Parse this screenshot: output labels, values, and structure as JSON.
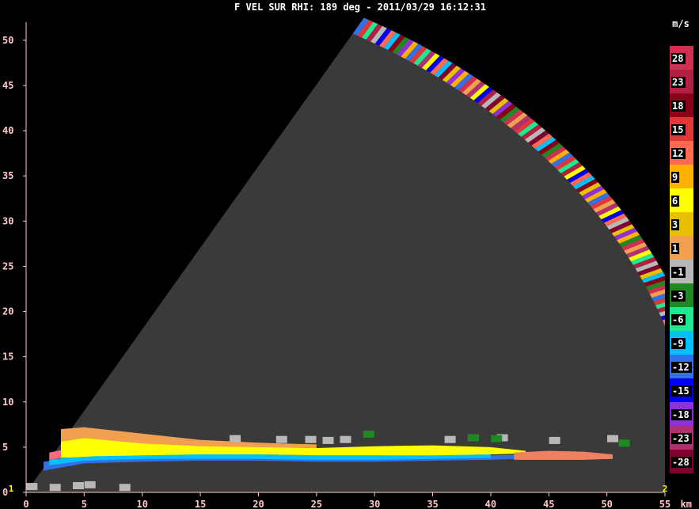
{
  "chart_data": {
    "type": "heatmap",
    "title": "F VEL SUR  RHI: 189 deg  -  2011/03/29 16:12:31",
    "xlabel": "km",
    "ylabel": "",
    "xlim": [
      0,
      55
    ],
    "ylim": [
      0,
      52
    ],
    "x_ticks": [
      0,
      5,
      10,
      15,
      20,
      25,
      30,
      35,
      40,
      45,
      50,
      55
    ],
    "y_ticks": [
      0,
      5,
      10,
      15,
      20,
      25,
      30,
      35,
      40,
      45,
      50
    ],
    "grid": false,
    "background_color": "#000000",
    "scan_area_color": "#3a3a3a",
    "scan_sector": {
      "max_elevation_deg": 61,
      "max_range_km": 60
    },
    "corner_labels": {
      "bottom_left": "1",
      "bottom_right": "2"
    },
    "colorbar": {
      "unit": "m/s",
      "placement": "right",
      "bins": [
        {
          "label": "28",
          "color": "#d03050"
        },
        {
          "label": "23",
          "color": "#b02040"
        },
        {
          "label": "18",
          "color": "#8a0018"
        },
        {
          "label": "15",
          "color": "#e03838"
        },
        {
          "label": "12",
          "color": "#ff6a50"
        },
        {
          "label": "9",
          "color": "#ffb000"
        },
        {
          "label": "6",
          "color": "#ffff00"
        },
        {
          "label": "3",
          "color": "#e8c000"
        },
        {
          "label": "1",
          "color": "#f0a050"
        },
        {
          "label": "-1",
          "color": "#b8b8b8"
        },
        {
          "label": "-3",
          "color": "#208820"
        },
        {
          "label": "-6",
          "color": "#20e890"
        },
        {
          "label": "-9",
          "color": "#00c0ff"
        },
        {
          "label": "-12",
          "color": "#3070e8"
        },
        {
          "label": "-15",
          "color": "#0000f0"
        },
        {
          "label": "-18",
          "color": "#9030d8"
        },
        {
          "label": "-23",
          "color": "#b03070"
        },
        {
          "label": "-28",
          "color": "#800030"
        }
      ]
    },
    "echo_layers": [
      {
        "name": "lower blue layer",
        "color": "#3070e8",
        "x": [
          1.5,
          5,
          10,
          15,
          20,
          25,
          30,
          35,
          40,
          44
        ],
        "bottom": [
          2.4,
          3.2,
          3.4,
          3.5,
          3.5,
          3.4,
          3.4,
          3.5,
          3.6,
          3.8
        ],
        "top": [
          3.4,
          3.9,
          4.0,
          4.0,
          4.1,
          4.0,
          4.0,
          4.0,
          4.1,
          4.2
        ]
      },
      {
        "name": "cyan layer",
        "color": "#00c0ff",
        "x": [
          2,
          5,
          10,
          15,
          20,
          25,
          30,
          35,
          40
        ],
        "bottom": [
          3.0,
          3.5,
          3.7,
          3.7,
          3.7,
          3.6,
          3.6,
          3.7,
          3.8
        ],
        "top": [
          3.6,
          4.0,
          4.2,
          4.2,
          4.2,
          4.1,
          4.1,
          4.2,
          4.2
        ]
      },
      {
        "name": "pink layer",
        "color": "#ff6a80",
        "x": [
          2,
          5,
          10,
          14,
          18,
          24
        ],
        "bottom": [
          3.6,
          4.2,
          4.6,
          4.7,
          4.7,
          4.6
        ],
        "top": [
          4.4,
          5.2,
          5.5,
          5.4,
          5.2,
          5.0
        ]
      },
      {
        "name": "yellow main layer",
        "color": "#ffff00",
        "x": [
          3,
          6,
          10,
          15,
          20,
          25,
          30,
          35,
          40,
          43
        ],
        "bottom": [
          3.8,
          4.0,
          4.1,
          4.2,
          4.2,
          4.1,
          4.1,
          4.1,
          4.2,
          4.3
        ],
        "top": [
          6.8,
          6.2,
          5.6,
          5.2,
          5.0,
          4.9,
          5.1,
          5.2,
          5.0,
          4.6
        ]
      },
      {
        "name": "orange upper layer",
        "color": "#f0a050",
        "x": [
          3,
          5,
          10,
          15,
          20,
          25
        ],
        "bottom": [
          5.6,
          6.0,
          5.4,
          5.1,
          5.0,
          4.9
        ],
        "top": [
          7.0,
          7.2,
          6.5,
          5.8,
          5.5,
          5.3
        ]
      },
      {
        "name": "orange trailing",
        "color": "#f08060",
        "x": [
          42,
          45,
          48,
          50.5
        ],
        "bottom": [
          3.6,
          3.6,
          3.6,
          3.7
        ],
        "top": [
          4.4,
          4.6,
          4.5,
          4.2
        ]
      }
    ],
    "echo_patches": [
      {
        "name": "grey cells",
        "color": "#b8b8b8",
        "x": [
          18,
          22,
          24.5,
          26,
          27.5,
          36.5,
          38.5,
          41,
          45.5,
          50.5
        ],
        "y": [
          5.9,
          5.8,
          5.8,
          5.7,
          5.8,
          5.8,
          6.0,
          6.0,
          5.7,
          5.9
        ]
      },
      {
        "name": "green cells",
        "color": "#208820",
        "x": [
          29.5,
          38.5,
          40.5,
          51.5
        ],
        "y": [
          6.4,
          6.0,
          5.9,
          5.4
        ]
      },
      {
        "name": "ground clutter",
        "color": "#b8b8b8",
        "x": [
          0.5,
          2.5,
          4.5,
          5.5,
          8.5
        ],
        "y": [
          0.6,
          0.5,
          0.7,
          0.8,
          0.5
        ]
      }
    ],
    "edge_band": {
      "name": "multicolor range-edge noise",
      "range_km": [
        58,
        60
      ]
    }
  }
}
